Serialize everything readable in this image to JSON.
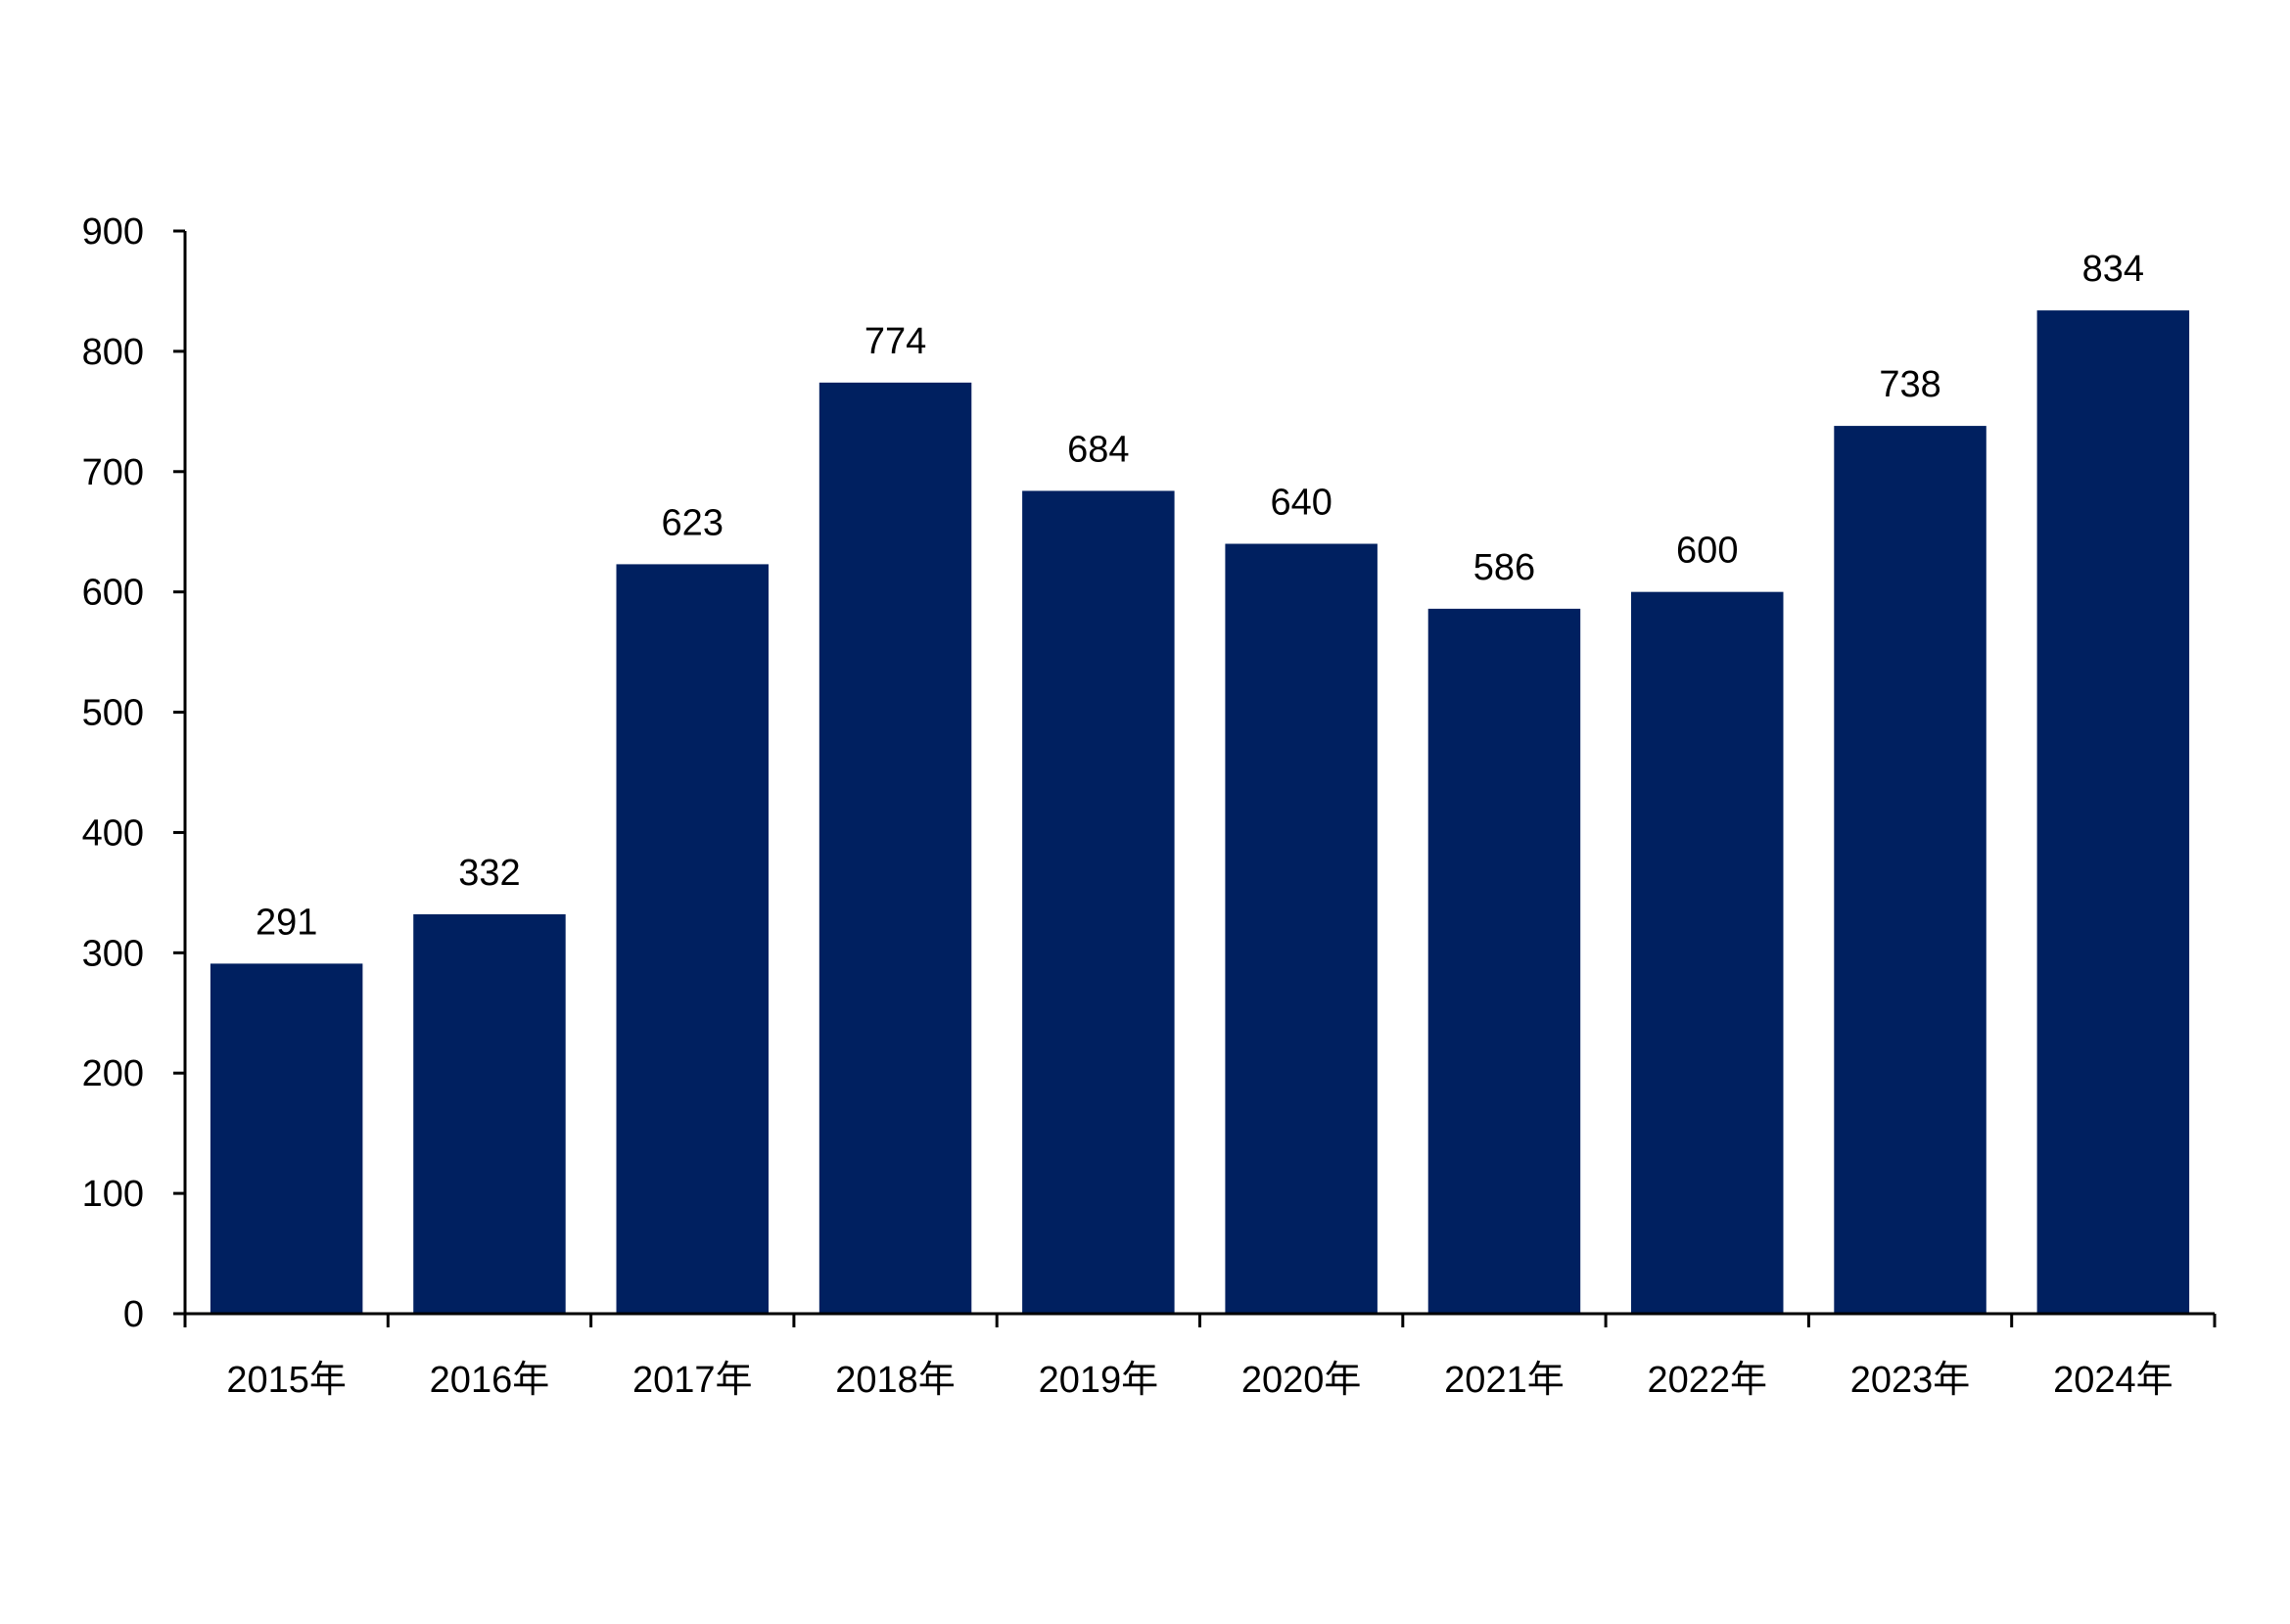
{
  "chart_data": {
    "type": "bar",
    "categories": [
      "2015年",
      "2016年",
      "2017年",
      "2018年",
      "2019年",
      "2020年",
      "2021年",
      "2022年",
      "2023年",
      "2024年"
    ],
    "values": [
      291,
      332,
      623,
      774,
      684,
      640,
      586,
      600,
      738,
      834
    ],
    "data_labels": [
      "291",
      "332",
      "623",
      "774",
      "684",
      "640",
      "586",
      "600",
      "738",
      "834"
    ],
    "title": "",
    "xlabel": "",
    "ylabel": "",
    "ylim": [
      0,
      900
    ],
    "yticks": [
      0,
      100,
      200,
      300,
      400,
      500,
      600,
      700,
      800,
      900
    ],
    "ytick_labels": [
      "0",
      "100",
      "200",
      "300",
      "400",
      "500",
      "600",
      "700",
      "800",
      "900"
    ],
    "grid": false,
    "legend": "none",
    "bar_color": "#002060"
  }
}
